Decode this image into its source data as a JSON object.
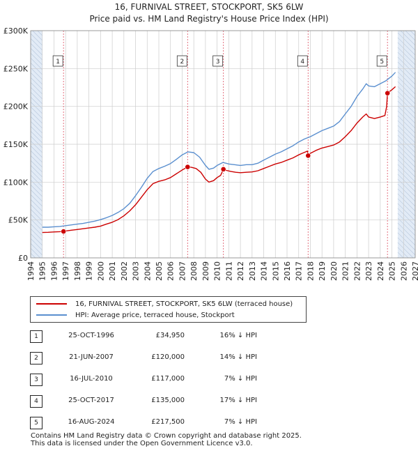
{
  "chart_data": {
    "type": "line",
    "title": "16, FURNIVAL STREET, STOCKPORT, SK5 6LW",
    "subtitle": "Price paid vs. HM Land Registry's House Price Index (HPI)",
    "xlabel": "",
    "ylabel": "",
    "xlim": [
      1994,
      2027
    ],
    "ylim": [
      0,
      300000
    ],
    "x_ticks": [
      "1994",
      "1995",
      "1996",
      "1997",
      "1998",
      "1999",
      "2000",
      "2001",
      "2002",
      "2003",
      "2004",
      "2005",
      "2006",
      "2007",
      "2008",
      "2009",
      "2010",
      "2011",
      "2012",
      "2013",
      "2014",
      "2015",
      "2016",
      "2017",
      "2018",
      "2019",
      "2020",
      "2021",
      "2022",
      "2023",
      "2024",
      "2025",
      "2026",
      "2027"
    ],
    "y_ticks": [
      {
        "value": 0,
        "label": "£0"
      },
      {
        "value": 50000,
        "label": "£50K"
      },
      {
        "value": 100000,
        "label": "£100K"
      },
      {
        "value": 150000,
        "label": "£150K"
      },
      {
        "value": 200000,
        "label": "£200K"
      },
      {
        "value": 250000,
        "label": "£250K"
      },
      {
        "value": 300000,
        "label": "£300K"
      }
    ],
    "colors": {
      "price": "#cc0000",
      "hpi": "#5a8fcf",
      "vline": "#e06070",
      "shade": "#dbe6f4",
      "grid": "#cccccc"
    },
    "series": [
      {
        "name": "16, FURNIVAL STREET, STOCKPORT, SK5 6LW (terraced house)",
        "color": "#cc0000",
        "points": [
          [
            1995.0,
            33500
          ],
          [
            1995.5,
            33800
          ],
          [
            1996.0,
            34200
          ],
          [
            1996.5,
            34600
          ],
          [
            1996.82,
            34950
          ],
          [
            1997.0,
            35500
          ],
          [
            1997.5,
            36500
          ],
          [
            1998.0,
            37500
          ],
          [
            1998.5,
            38500
          ],
          [
            1999.0,
            39500
          ],
          [
            1999.5,
            40500
          ],
          [
            2000.0,
            42000
          ],
          [
            2000.5,
            44500
          ],
          [
            2001.0,
            47000
          ],
          [
            2001.5,
            50500
          ],
          [
            2002.0,
            55500
          ],
          [
            2002.5,
            62000
          ],
          [
            2003.0,
            70000
          ],
          [
            2003.5,
            80000
          ],
          [
            2004.0,
            90000
          ],
          [
            2004.5,
            98000
          ],
          [
            2005.0,
            101000
          ],
          [
            2005.5,
            103000
          ],
          [
            2006.0,
            106000
          ],
          [
            2006.5,
            111000
          ],
          [
            2007.0,
            116000
          ],
          [
            2007.47,
            120000
          ],
          [
            2007.8,
            119500
          ],
          [
            2008.2,
            118000
          ],
          [
            2008.6,
            113000
          ],
          [
            2009.0,
            104000
          ],
          [
            2009.3,
            100000
          ],
          [
            2009.7,
            102000
          ],
          [
            2010.0,
            106000
          ],
          [
            2010.3,
            109000
          ],
          [
            2010.54,
            117000
          ],
          [
            2010.8,
            115500
          ],
          [
            2011.2,
            114000
          ],
          [
            2011.6,
            113000
          ],
          [
            2012.0,
            112500
          ],
          [
            2012.5,
            113000
          ],
          [
            2013.0,
            113500
          ],
          [
            2013.5,
            115000
          ],
          [
            2014.0,
            118000
          ],
          [
            2014.5,
            121000
          ],
          [
            2015.0,
            124000
          ],
          [
            2015.5,
            126000
          ],
          [
            2016.0,
            129000
          ],
          [
            2016.5,
            132000
          ],
          [
            2017.0,
            136000
          ],
          [
            2017.3,
            138000
          ],
          [
            2017.6,
            140000
          ],
          [
            2017.75,
            141000
          ],
          [
            2017.81,
            135000
          ],
          [
            2018.0,
            138000
          ],
          [
            2018.5,
            142000
          ],
          [
            2019.0,
            145000
          ],
          [
            2019.5,
            147000
          ],
          [
            2020.0,
            149000
          ],
          [
            2020.5,
            153000
          ],
          [
            2021.0,
            160000
          ],
          [
            2021.5,
            168000
          ],
          [
            2022.0,
            178000
          ],
          [
            2022.5,
            186000
          ],
          [
            2022.8,
            190000
          ],
          [
            2023.0,
            186000
          ],
          [
            2023.5,
            184000
          ],
          [
            2024.0,
            186000
          ],
          [
            2024.4,
            188000
          ],
          [
            2024.55,
            200000
          ],
          [
            2024.62,
            217500
          ],
          [
            2025.0,
            222000
          ],
          [
            2025.3,
            226000
          ]
        ]
      },
      {
        "name": "HPI: Average price, terraced house, Stockport",
        "color": "#5a8fcf",
        "points": [
          [
            1995.0,
            40500
          ],
          [
            1995.5,
            40500
          ],
          [
            1996.0,
            41000
          ],
          [
            1996.5,
            41500
          ],
          [
            1997.0,
            42500
          ],
          [
            1997.5,
            43500
          ],
          [
            1998.0,
            44500
          ],
          [
            1998.5,
            45500
          ],
          [
            1999.0,
            47000
          ],
          [
            1999.5,
            48500
          ],
          [
            2000.0,
            50500
          ],
          [
            2000.5,
            53000
          ],
          [
            2001.0,
            56000
          ],
          [
            2001.5,
            60000
          ],
          [
            2002.0,
            65000
          ],
          [
            2002.5,
            72000
          ],
          [
            2003.0,
            82000
          ],
          [
            2003.5,
            93000
          ],
          [
            2004.0,
            105000
          ],
          [
            2004.5,
            114000
          ],
          [
            2005.0,
            118000
          ],
          [
            2005.5,
            121000
          ],
          [
            2006.0,
            124500
          ],
          [
            2006.5,
            130000
          ],
          [
            2007.0,
            136000
          ],
          [
            2007.5,
            140000
          ],
          [
            2008.0,
            139000
          ],
          [
            2008.5,
            133000
          ],
          [
            2009.0,
            122000
          ],
          [
            2009.3,
            117000
          ],
          [
            2009.7,
            118500
          ],
          [
            2010.0,
            122000
          ],
          [
            2010.5,
            126000
          ],
          [
            2011.0,
            124000
          ],
          [
            2011.5,
            123000
          ],
          [
            2012.0,
            122000
          ],
          [
            2012.5,
            123000
          ],
          [
            2013.0,
            123000
          ],
          [
            2013.5,
            125000
          ],
          [
            2014.0,
            129000
          ],
          [
            2014.5,
            133000
          ],
          [
            2015.0,
            137000
          ],
          [
            2015.5,
            140000
          ],
          [
            2016.0,
            144000
          ],
          [
            2016.5,
            148000
          ],
          [
            2017.0,
            153000
          ],
          [
            2017.5,
            157000
          ],
          [
            2018.0,
            160000
          ],
          [
            2018.5,
            164000
          ],
          [
            2019.0,
            168000
          ],
          [
            2019.5,
            171000
          ],
          [
            2020.0,
            174000
          ],
          [
            2020.5,
            180000
          ],
          [
            2021.0,
            190000
          ],
          [
            2021.5,
            200000
          ],
          [
            2022.0,
            213000
          ],
          [
            2022.5,
            223000
          ],
          [
            2022.8,
            230000
          ],
          [
            2023.0,
            227000
          ],
          [
            2023.5,
            226000
          ],
          [
            2024.0,
            230000
          ],
          [
            2024.5,
            234000
          ],
          [
            2025.0,
            240000
          ],
          [
            2025.3,
            245000
          ]
        ]
      }
    ],
    "transactions": [
      {
        "num": "1",
        "x": 1996.82,
        "price": 34950,
        "date": "25-OCT-1996",
        "price_label": "£34,950",
        "hpi_label": "16% ↓ HPI"
      },
      {
        "num": "2",
        "x": 2007.47,
        "price": 120000,
        "date": "21-JUN-2007",
        "price_label": "£120,000",
        "hpi_label": "14% ↓ HPI"
      },
      {
        "num": "3",
        "x": 2010.54,
        "price": 117000,
        "date": "16-JUL-2010",
        "price_label": "£117,000",
        "hpi_label": "7% ↓ HPI"
      },
      {
        "num": "4",
        "x": 2017.81,
        "price": 135000,
        "date": "25-OCT-2017",
        "price_label": "£135,000",
        "hpi_label": "17% ↓ HPI"
      },
      {
        "num": "5",
        "x": 2024.62,
        "price": 217500,
        "date": "16-AUG-2024",
        "price_label": "£217,500",
        "hpi_label": "7% ↓ HPI"
      }
    ],
    "shaded_ranges": [
      [
        1994,
        1995
      ],
      [
        2025.5,
        2027
      ]
    ],
    "legend": [
      {
        "label": "16, FURNIVAL STREET, STOCKPORT, SK5 6LW (terraced house)",
        "color": "#cc0000"
      },
      {
        "label": "HPI: Average price, terraced house, Stockport",
        "color": "#5a8fcf"
      }
    ]
  },
  "footer": {
    "line1": "Contains HM Land Registry data © Crown copyright and database right 2025.",
    "line2": "This data is licensed under the Open Government Licence v3.0."
  }
}
